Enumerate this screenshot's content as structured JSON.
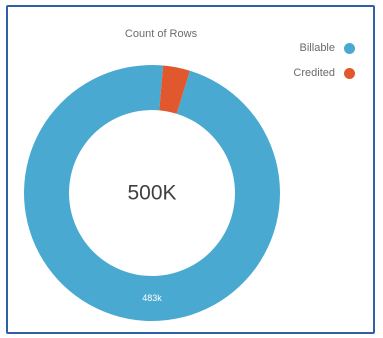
{
  "chart_data": {
    "type": "pie",
    "title": "Count of Rows",
    "center_label": "500K",
    "slices": [
      {
        "name": "Billable",
        "value": 483,
        "label": "483k",
        "color": "#4aa9d0"
      },
      {
        "name": "Credited",
        "value": 17,
        "label": "",
        "color": "#e1582e"
      }
    ],
    "legend_position": "top-right"
  },
  "colors": {
    "border": "#2f5fa6",
    "text": "#6b6b6b"
  }
}
